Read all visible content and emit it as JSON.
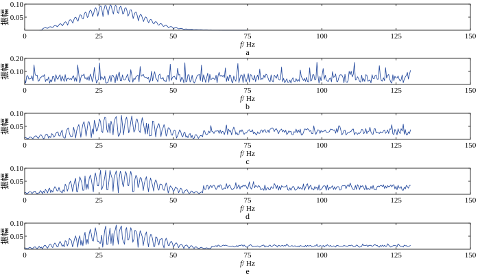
{
  "colors": {
    "series": "#2b4fa0",
    "axis": "#000000",
    "background": "#ffffff"
  },
  "chart_data": [
    {
      "type": "line",
      "panel": "a",
      "xlabel_var": "f",
      "xlabel_unit": "/ Hz",
      "ylabel": "振幅",
      "xlim": [
        0,
        150
      ],
      "ylim": [
        0,
        0.1
      ],
      "xticks": [
        0,
        25,
        50,
        75,
        100,
        125,
        150
      ],
      "yticks": [
        0.05,
        0.1
      ],
      "ytick_labels": [
        "0.05",
        "0.10"
      ],
      "series": [
        {
          "profile": "comb",
          "x_start": 5,
          "x_end": 75,
          "peak": 0.1,
          "center": 29,
          "width": 13,
          "period": 1.7,
          "comb_depth": 0.92,
          "noise": 0.03
        }
      ]
    },
    {
      "type": "line",
      "panel": "b",
      "xlabel_var": "f",
      "xlabel_unit": "/ Hz",
      "ylabel": "振幅",
      "xlim": [
        0,
        150
      ],
      "ylim": [
        0,
        0.2
      ],
      "xticks": [
        0,
        25,
        50,
        75,
        100,
        125,
        150
      ],
      "yticks": [
        0.1,
        0.2
      ],
      "ytick_labels": [
        "0.10",
        "0.20"
      ],
      "series": [
        {
          "profile": "flat-noise",
          "x_start": 0,
          "x_end": 130,
          "peak": 0.12,
          "base": 0.05,
          "spike_max": 0.17,
          "seed": 11
        }
      ]
    },
    {
      "type": "line",
      "panel": "c",
      "xlabel_var": "f",
      "xlabel_unit": "/ Hz",
      "ylabel": "振幅",
      "xlim": [
        0,
        150
      ],
      "ylim": [
        0,
        0.1
      ],
      "xticks": [
        0,
        25,
        50,
        75,
        100,
        125,
        150
      ],
      "yticks": [
        0.05,
        0.1
      ],
      "ytick_labels": [
        "0.05",
        "0.10"
      ],
      "series": [
        {
          "profile": "comb-tail",
          "x_start": 0,
          "x_end": 130,
          "peak": 0.1,
          "center": 32,
          "width": 16,
          "period": 1.8,
          "cutoff": 60,
          "tail": 0.025,
          "seed": 23
        }
      ]
    },
    {
      "type": "line",
      "panel": "d",
      "xlabel_var": "f",
      "xlabel_unit": "/ Hz",
      "ylabel": "振幅",
      "xlim": [
        0,
        150
      ],
      "ylim": [
        0,
        0.1
      ],
      "xticks": [
        0,
        25,
        50,
        75,
        100,
        125,
        150
      ],
      "yticks": [
        0.05,
        0.1
      ],
      "ytick_labels": [
        "0.05",
        "0.10"
      ],
      "series": [
        {
          "profile": "comb-tail",
          "x_start": 0,
          "x_end": 130,
          "peak": 0.1,
          "center": 30,
          "width": 15,
          "period": 1.7,
          "cutoff": 60,
          "tail": 0.022,
          "seed": 37
        }
      ]
    },
    {
      "type": "line",
      "panel": "e",
      "xlabel_var": "f",
      "xlabel_unit": "/ Hz",
      "ylabel": "振幅",
      "xlim": [
        0,
        150
      ],
      "ylim": [
        0,
        0.1
      ],
      "xticks": [
        0,
        25,
        50,
        75,
        100,
        125,
        150
      ],
      "yticks": [
        0.05,
        0.1
      ],
      "ytick_labels": [
        "0.05",
        "0.10"
      ],
      "series": [
        {
          "profile": "comb-tail",
          "x_start": 0,
          "x_end": 130,
          "peak": 0.1,
          "center": 31,
          "width": 14,
          "period": 1.7,
          "cutoff": 63,
          "tail": 0.008,
          "seed": 51
        }
      ]
    }
  ]
}
